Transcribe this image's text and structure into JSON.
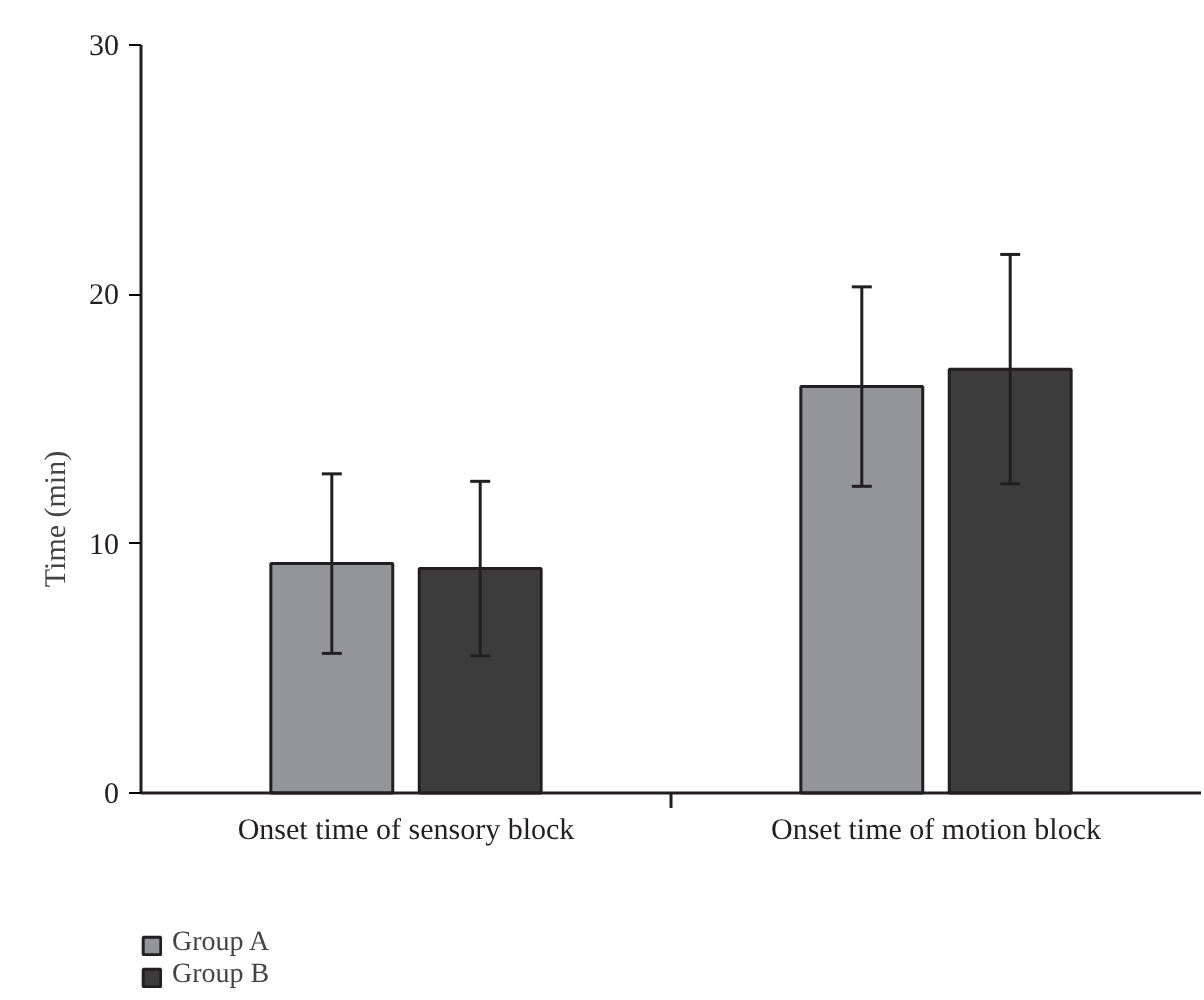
{
  "chart_data": {
    "type": "bar",
    "ylabel": "Time (min)",
    "categories": [
      "Onset time of sensory block",
      "Onset time of motion block"
    ],
    "series": [
      {
        "name": "Group A",
        "color": "#939598",
        "values": [
          9.2,
          16.3
        ],
        "errors": [
          [
            5.6,
            12.8
          ],
          [
            12.3,
            20.3
          ]
        ]
      },
      {
        "name": "Group B",
        "color": "#3c3c3c",
        "values": [
          9.0,
          17.0
        ],
        "errors": [
          [
            5.5,
            12.5
          ],
          [
            12.4,
            21.6
          ]
        ]
      }
    ],
    "ylim": [
      0,
      30
    ],
    "yticks": [
      0,
      10,
      20,
      30
    ],
    "grid": false,
    "legend": "bottom left"
  }
}
